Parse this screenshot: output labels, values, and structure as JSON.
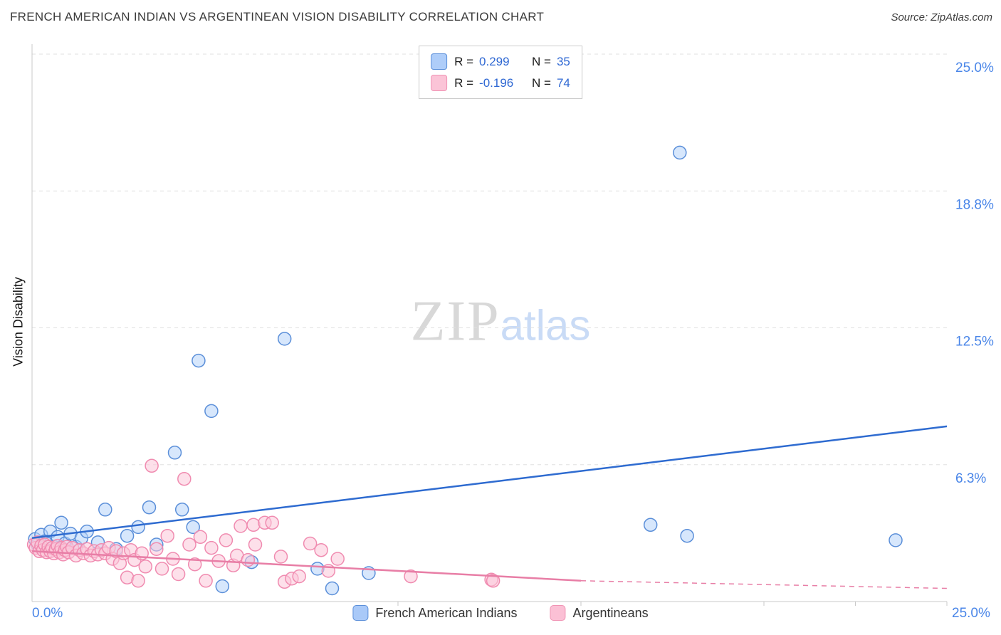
{
  "header": {
    "title": "FRENCH AMERICAN INDIAN VS ARGENTINEAN VISION DISABILITY CORRELATION CHART",
    "source": "Source: ZipAtlas.com"
  },
  "watermark": {
    "part1": "ZIP",
    "part2": "atlas"
  },
  "axes": {
    "y_label": "Vision Disability",
    "x_min_label": "0.0%",
    "x_max_label": "25.0%",
    "y_ticks": [
      {
        "value": 6.25,
        "label": "6.3%"
      },
      {
        "value": 12.5,
        "label": "12.5%"
      },
      {
        "value": 18.75,
        "label": "18.8%"
      },
      {
        "value": 25.0,
        "label": "25.0%"
      }
    ]
  },
  "legend_box": {
    "rows": [
      {
        "r_label": "R =",
        "r_value": "0.299",
        "n_label": "N =",
        "n_value": "35"
      },
      {
        "r_label": "R =",
        "r_value": "-0.196",
        "n_label": "N =",
        "n_value": "74"
      }
    ]
  },
  "bottom_legend": {
    "items": [
      {
        "label": "French American Indians"
      },
      {
        "label": "Argentineans"
      }
    ]
  },
  "colors": {
    "accent_blue": "#2f68d3",
    "tick_label": "#4a86e8",
    "grid": "#e0e0e0",
    "axis": "#c9c9c9",
    "point_blue_fill": "#b7d3f9",
    "point_blue_stroke": "#5b8fd9",
    "point_pink_fill": "#fbc7d9",
    "point_pink_stroke": "#f08bb0",
    "trend_blue": "#2e6bd0",
    "trend_pink": "#e87ea6"
  },
  "chart_data": {
    "type": "scatter",
    "title": "FRENCH AMERICAN INDIAN VS ARGENTINEAN VISION DISABILITY CORRELATION CHART",
    "xlabel": "",
    "ylabel": "Vision Disability",
    "xlim": [
      0,
      25
    ],
    "ylim": [
      0,
      25
    ],
    "x_axis_ticks": [
      10,
      15,
      20,
      22.5,
      25
    ],
    "grid": "horizontal-dashed",
    "legend_position": "top-center",
    "series": [
      {
        "name": "French American Indians",
        "key": "french-american-indians",
        "R": 0.299,
        "N": 35,
        "fill": "#b7d3f9",
        "stroke": "#5b8fd9",
        "points": [
          [
            0.08,
            2.85
          ],
          [
            0.15,
            2.6
          ],
          [
            0.25,
            3.05
          ],
          [
            0.35,
            2.75
          ],
          [
            0.5,
            3.2
          ],
          [
            0.6,
            2.5
          ],
          [
            0.7,
            2.95
          ],
          [
            0.8,
            3.6
          ],
          [
            0.9,
            2.65
          ],
          [
            1.05,
            3.1
          ],
          [
            1.2,
            2.5
          ],
          [
            1.35,
            2.9
          ],
          [
            1.5,
            3.2
          ],
          [
            1.8,
            2.7
          ],
          [
            2.0,
            4.2
          ],
          [
            2.3,
            2.4
          ],
          [
            2.6,
            3.0
          ],
          [
            2.9,
            3.4
          ],
          [
            3.2,
            4.3
          ],
          [
            3.4,
            2.6
          ],
          [
            3.9,
            6.8
          ],
          [
            4.1,
            4.2
          ],
          [
            4.4,
            3.4
          ],
          [
            4.55,
            11.0
          ],
          [
            4.9,
            8.7
          ],
          [
            5.2,
            0.7
          ],
          [
            6.0,
            1.8
          ],
          [
            6.9,
            12.0
          ],
          [
            7.8,
            1.5
          ],
          [
            8.2,
            0.6
          ],
          [
            9.2,
            1.3
          ],
          [
            16.9,
            3.5
          ],
          [
            17.7,
            20.5
          ],
          [
            17.9,
            3.0
          ],
          [
            23.6,
            2.8
          ]
        ]
      },
      {
        "name": "Argentineans",
        "key": "argentineans",
        "R": -0.196,
        "N": 74,
        "fill": "#fbc7d9",
        "stroke": "#f08bb0",
        "points": [
          [
            0.05,
            2.6
          ],
          [
            0.1,
            2.45
          ],
          [
            0.15,
            2.7
          ],
          [
            0.2,
            2.3
          ],
          [
            0.25,
            2.55
          ],
          [
            0.3,
            2.35
          ],
          [
            0.35,
            2.6
          ],
          [
            0.4,
            2.25
          ],
          [
            0.45,
            2.5
          ],
          [
            0.5,
            2.3
          ],
          [
            0.55,
            2.45
          ],
          [
            0.6,
            2.2
          ],
          [
            0.65,
            2.4
          ],
          [
            0.7,
            2.55
          ],
          [
            0.75,
            2.25
          ],
          [
            0.8,
            2.45
          ],
          [
            0.85,
            2.15
          ],
          [
            0.9,
            2.35
          ],
          [
            0.95,
            2.5
          ],
          [
            1.0,
            2.25
          ],
          [
            1.1,
            2.45
          ],
          [
            1.2,
            2.1
          ],
          [
            1.3,
            2.35
          ],
          [
            1.4,
            2.2
          ],
          [
            1.5,
            2.4
          ],
          [
            1.6,
            2.1
          ],
          [
            1.7,
            2.3
          ],
          [
            1.8,
            2.15
          ],
          [
            1.9,
            2.35
          ],
          [
            2.0,
            2.2
          ],
          [
            2.1,
            2.45
          ],
          [
            2.2,
            1.95
          ],
          [
            2.3,
            2.3
          ],
          [
            2.4,
            1.75
          ],
          [
            2.5,
            2.2
          ],
          [
            2.6,
            1.1
          ],
          [
            2.7,
            2.35
          ],
          [
            2.8,
            1.9
          ],
          [
            2.9,
            0.95
          ],
          [
            3.0,
            2.2
          ],
          [
            3.1,
            1.6
          ],
          [
            3.27,
            6.2
          ],
          [
            3.4,
            2.4
          ],
          [
            3.55,
            1.5
          ],
          [
            3.7,
            3.0
          ],
          [
            3.85,
            1.95
          ],
          [
            4.0,
            1.25
          ],
          [
            4.16,
            5.6
          ],
          [
            4.3,
            2.6
          ],
          [
            4.45,
            1.7
          ],
          [
            4.6,
            2.95
          ],
          [
            4.75,
            0.95
          ],
          [
            4.9,
            2.45
          ],
          [
            5.1,
            1.85
          ],
          [
            5.3,
            2.8
          ],
          [
            5.5,
            1.65
          ],
          [
            5.6,
            2.1
          ],
          [
            5.7,
            3.45
          ],
          [
            5.9,
            1.9
          ],
          [
            6.05,
            3.5
          ],
          [
            6.1,
            2.6
          ],
          [
            6.36,
            3.6
          ],
          [
            6.56,
            3.6
          ],
          [
            6.8,
            2.05
          ],
          [
            6.9,
            0.9
          ],
          [
            7.1,
            1.05
          ],
          [
            7.3,
            1.15
          ],
          [
            7.6,
            2.65
          ],
          [
            7.9,
            2.35
          ],
          [
            8.1,
            1.4
          ],
          [
            8.35,
            1.95
          ],
          [
            10.35,
            1.15
          ],
          [
            12.55,
            1.0
          ],
          [
            12.6,
            0.95
          ]
        ]
      }
    ],
    "trend_lines": [
      {
        "series": "French American Indians",
        "color": "#2e6bd0",
        "solid": [
          [
            0,
            2.9
          ],
          [
            25,
            8.0
          ]
        ]
      },
      {
        "series": "Argentineans",
        "color": "#e87ea6",
        "solid": [
          [
            0,
            2.3
          ],
          [
            15,
            0.95
          ]
        ],
        "dashed": [
          [
            15,
            0.95
          ],
          [
            25,
            0.6
          ]
        ]
      }
    ]
  }
}
